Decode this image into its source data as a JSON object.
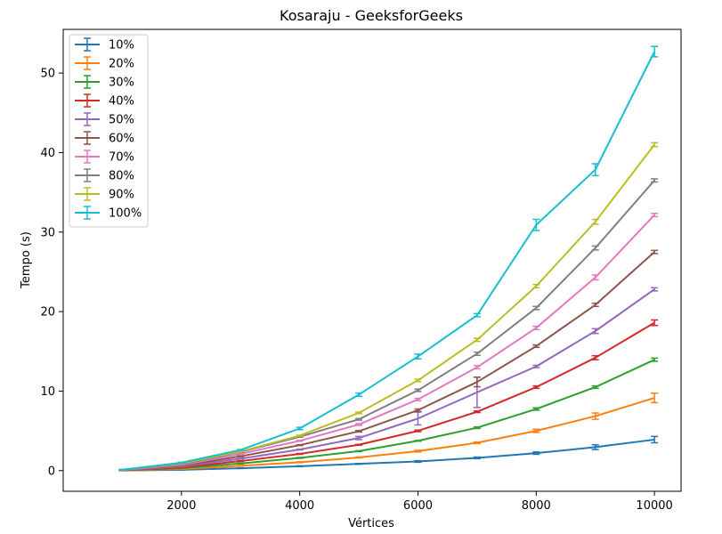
{
  "chart_data": {
    "type": "line",
    "title": "Kosaraju - GeeksforGeeks",
    "xlabel": "Vértices",
    "ylabel": "Tempo (s)",
    "xlim": [
      0,
      10450
    ],
    "ylim": [
      -2.6,
      55.5
    ],
    "xticks": [
      2000,
      4000,
      6000,
      8000,
      10000
    ],
    "yticks": [
      0,
      10,
      20,
      30,
      40,
      50
    ],
    "grid": false,
    "legend_position": "top-left",
    "x": [
      1000,
      2000,
      3000,
      4000,
      5000,
      6000,
      7000,
      8000,
      9000,
      10000
    ],
    "series": [
      {
        "name": "10%",
        "color": "#1f77b4",
        "values": [
          0.02,
          0.1,
          0.3,
          0.55,
          0.85,
          1.15,
          1.6,
          2.2,
          2.95,
          3.9
        ],
        "errors": [
          0.02,
          0.02,
          0.03,
          0.05,
          0.05,
          0.1,
          0.1,
          0.15,
          0.3,
          0.4
        ]
      },
      {
        "name": "20%",
        "color": "#ff7f0e",
        "values": [
          0.03,
          0.2,
          0.6,
          1.05,
          1.65,
          2.45,
          3.5,
          5.0,
          6.85,
          9.15
        ],
        "errors": [
          0.02,
          0.02,
          0.05,
          0.05,
          0.05,
          0.1,
          0.1,
          0.2,
          0.4,
          0.6
        ]
      },
      {
        "name": "30%",
        "color": "#2ca02c",
        "values": [
          0.04,
          0.3,
          0.9,
          1.6,
          2.45,
          3.75,
          5.4,
          7.75,
          10.5,
          13.95
        ],
        "errors": [
          0.02,
          0.02,
          0.05,
          0.05,
          0.05,
          0.05,
          0.1,
          0.15,
          0.15,
          0.2
        ]
      },
      {
        "name": "40%",
        "color": "#d62728",
        "values": [
          0.05,
          0.4,
          1.2,
          2.1,
          3.25,
          5.0,
          7.4,
          10.5,
          14.2,
          18.6
        ],
        "errors": [
          0.02,
          0.02,
          0.05,
          0.05,
          0.05,
          0.1,
          0.1,
          0.15,
          0.25,
          0.35
        ]
      },
      {
        "name": "50%",
        "color": "#9467bd",
        "values": [
          0.07,
          0.5,
          1.5,
          2.65,
          4.1,
          6.55,
          9.85,
          13.1,
          17.55,
          22.8
        ],
        "errors": [
          0.02,
          0.02,
          0.05,
          0.05,
          0.2,
          0.8,
          1.9,
          0.15,
          0.3,
          0.2
        ]
      },
      {
        "name": "60%",
        "color": "#8c564b",
        "values": [
          0.08,
          0.6,
          1.8,
          3.2,
          4.95,
          7.6,
          11.15,
          15.65,
          20.85,
          27.5
        ],
        "errors": [
          0.02,
          0.02,
          0.05,
          0.05,
          0.1,
          0.15,
          0.6,
          0.15,
          0.2,
          0.2
        ]
      },
      {
        "name": "70%",
        "color": "#e377c2",
        "values": [
          0.09,
          0.7,
          2.1,
          3.75,
          5.8,
          8.95,
          13.0,
          17.95,
          24.3,
          32.15
        ],
        "errors": [
          0.02,
          0.02,
          0.05,
          0.05,
          0.1,
          0.15,
          0.2,
          0.2,
          0.3,
          0.2
        ]
      },
      {
        "name": "80%",
        "color": "#7f7f7f",
        "values": [
          0.1,
          0.8,
          2.35,
          4.25,
          6.45,
          10.1,
          14.7,
          20.45,
          28.0,
          36.5
        ],
        "errors": [
          0.02,
          0.02,
          0.05,
          0.05,
          0.1,
          0.15,
          0.2,
          0.2,
          0.25,
          0.2
        ]
      },
      {
        "name": "90%",
        "color": "#bcbd22",
        "values": [
          0.11,
          0.9,
          2.4,
          4.4,
          7.25,
          11.35,
          16.45,
          23.2,
          31.3,
          41.0
        ],
        "errors": [
          0.02,
          0.02,
          0.05,
          0.05,
          0.1,
          0.15,
          0.2,
          0.2,
          0.3,
          0.25
        ]
      },
      {
        "name": "100%",
        "color": "#17becf",
        "values": [
          0.12,
          1.0,
          2.6,
          5.3,
          9.55,
          14.35,
          19.55,
          30.9,
          37.85,
          52.7
        ],
        "errors": [
          0.02,
          0.05,
          0.05,
          0.15,
          0.2,
          0.3,
          0.2,
          0.7,
          0.75,
          0.65
        ]
      }
    ]
  }
}
